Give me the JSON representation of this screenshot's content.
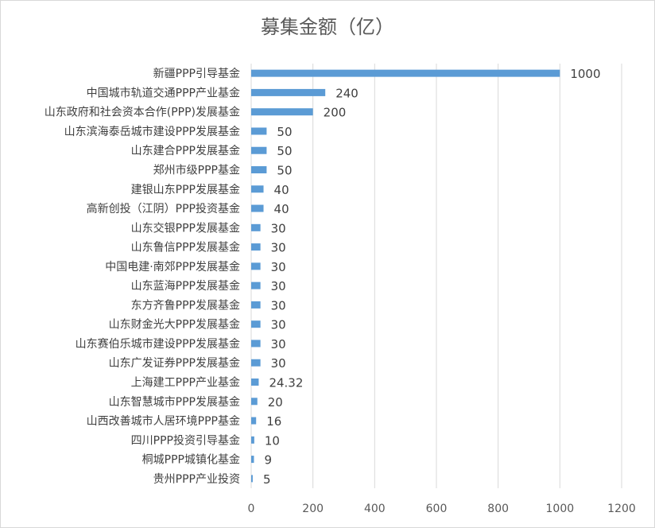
{
  "chart_data": {
    "type": "bar",
    "orientation": "horizontal",
    "title": "募集金额（亿）",
    "categories": [
      "新疆PPP引导基金",
      "中国城市轨道交通PPP产业基金",
      "山东政府和社会资本合作(PPP)发展基金",
      "山东滨海泰岳城市建设PPP发展基金",
      "山东建合PPP发展基金",
      "郑州市级PPP基金",
      "建银山东PPP发展基金",
      "高新创投（江阴）PPP投资基金",
      "山东交银PPP发展基金",
      "山东鲁信PPP发展基金",
      "中国电建·南郊PPP发展基金",
      "山东蓝海PPP发展基金",
      "东方齐鲁PPP发展基金",
      "山东财金光大PPP发展基金",
      "山东赛伯乐城市建设PPP发展基金",
      "山东广发证券PPP发展基金",
      "上海建工PPP产业基金",
      "山东智慧城市PPP发展基金",
      "山西改善城市人居环境PPP基金",
      "四川PPP投资引导基金",
      "桐城PPP城镇化基金",
      "贵州PPP产业投资"
    ],
    "values": [
      1000,
      240,
      200,
      50,
      50,
      50,
      40,
      40,
      30,
      30,
      30,
      30,
      30,
      30,
      30,
      30,
      24.32,
      20,
      16,
      10,
      9,
      5
    ],
    "value_labels": [
      "1000",
      "240",
      "200",
      "50",
      "50",
      "50",
      "40",
      "40",
      "30",
      "30",
      "30",
      "30",
      "30",
      "30",
      "30",
      "30",
      "24.32",
      "20",
      "16",
      "10",
      "9",
      "5"
    ],
    "xticks": [
      "0",
      "200",
      "400",
      "600",
      "800",
      "1000",
      "1200"
    ],
    "xlim": [
      0,
      1200
    ],
    "grid": "vertical",
    "legend": "none",
    "bar_color": "#5b9bd5",
    "grid_color": "#d9d9d9"
  }
}
